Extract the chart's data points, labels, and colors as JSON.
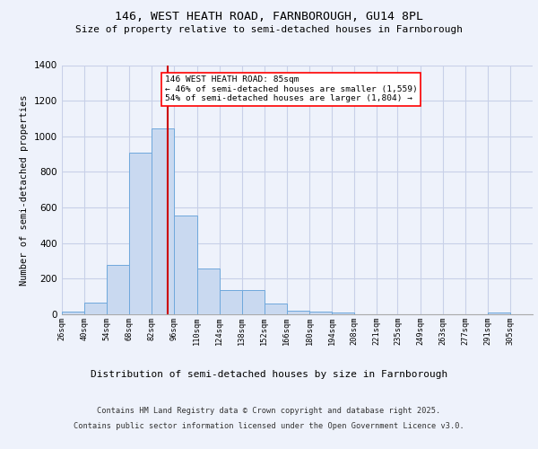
{
  "title1": "146, WEST HEATH ROAD, FARNBOROUGH, GU14 8PL",
  "title2": "Size of property relative to semi-detached houses in Farnborough",
  "xlabel": "Distribution of semi-detached houses by size in Farnborough",
  "ylabel": "Number of semi-detached properties",
  "footnote1": "Contains HM Land Registry data © Crown copyright and database right 2025.",
  "footnote2": "Contains public sector information licensed under the Open Government Licence v3.0.",
  "annotation_line1": "146 WEST HEATH ROAD: 85sqm",
  "annotation_line2": "← 46% of semi-detached houses are smaller (1,559)",
  "annotation_line3": "54% of semi-detached houses are larger (1,804) →",
  "bar_color": "#c9d9f0",
  "bar_edge_color": "#6fa8dc",
  "vline_color": "#cc0000",
  "vline_x": 85,
  "categories": [
    "26sqm",
    "40sqm",
    "54sqm",
    "68sqm",
    "82sqm",
    "96sqm",
    "110sqm",
    "124sqm",
    "138sqm",
    "152sqm",
    "166sqm",
    "180sqm",
    "194sqm",
    "208sqm",
    "221sqm",
    "235sqm",
    "249sqm",
    "263sqm",
    "277sqm",
    "291sqm",
    "305sqm"
  ],
  "bin_edges": [
    19,
    33,
    47,
    61,
    75,
    89,
    103,
    117,
    131,
    145,
    159,
    173,
    187,
    201,
    215,
    228,
    242,
    256,
    270,
    284,
    298,
    312
  ],
  "values": [
    15,
    65,
    280,
    910,
    1045,
    555,
    255,
    135,
    135,
    60,
    20,
    15,
    10,
    0,
    0,
    0,
    0,
    0,
    0,
    10,
    0
  ],
  "ylim": [
    0,
    1400
  ],
  "background_color": "#eef2fb",
  "grid_color": "#c8d0e8"
}
